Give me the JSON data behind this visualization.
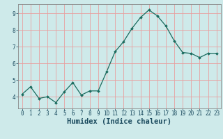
{
  "x": [
    0,
    1,
    2,
    3,
    4,
    5,
    6,
    7,
    8,
    9,
    10,
    11,
    12,
    13,
    14,
    15,
    16,
    17,
    18,
    19,
    20,
    21,
    22,
    23
  ],
  "y": [
    4.15,
    4.6,
    3.9,
    4.0,
    3.65,
    4.3,
    4.85,
    4.1,
    4.35,
    4.35,
    5.5,
    6.7,
    7.3,
    8.1,
    8.75,
    9.2,
    8.85,
    8.25,
    7.35,
    6.65,
    6.6,
    6.35,
    6.6,
    6.6
  ],
  "line_color": "#1a6b5e",
  "marker": "D",
  "marker_size": 2.0,
  "bg_color": "#ceeaea",
  "grid_color": "#e8a0a0",
  "xlabel": "Humidex (Indice chaleur)",
  "xlim": [
    -0.5,
    23.5
  ],
  "ylim": [
    3.3,
    9.55
  ],
  "yticks": [
    4,
    5,
    6,
    7,
    8,
    9
  ],
  "xticks": [
    0,
    1,
    2,
    3,
    4,
    5,
    6,
    7,
    8,
    9,
    10,
    11,
    12,
    13,
    14,
    15,
    16,
    17,
    18,
    19,
    20,
    21,
    22,
    23
  ],
  "tick_fontsize": 5.5,
  "xlabel_fontsize": 7.5,
  "xlabel_color": "#1a4a5e",
  "spine_color": "#888888"
}
